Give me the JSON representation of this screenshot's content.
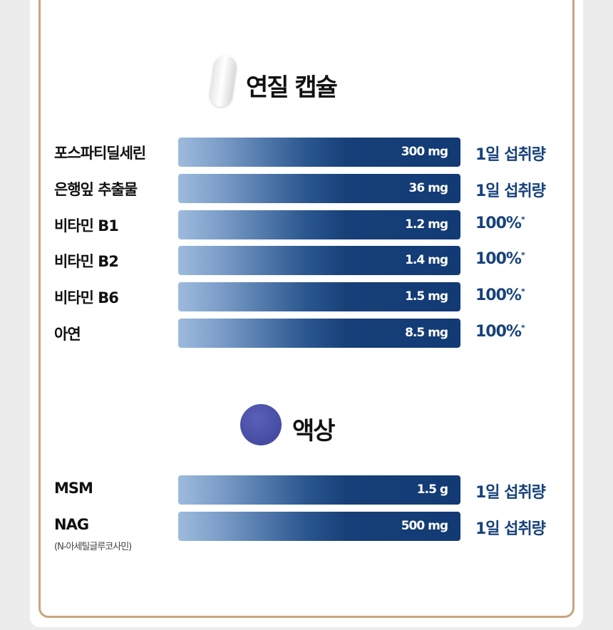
{
  "capsule_section": {
    "title": "연질 캡슐",
    "icon": "softgel-capsule-icon",
    "rows": [
      {
        "name": "포스파티딜세린",
        "amount": "300 mg",
        "right": "1일 섭취량",
        "star": ""
      },
      {
        "name": "은행잎 추출물",
        "amount": "36 mg",
        "right": "1일 섭취량",
        "star": ""
      },
      {
        "name": "비타민 B1",
        "amount": "1.2 mg",
        "right": "100%",
        "star": "*"
      },
      {
        "name": "비타민 B2",
        "amount": "1.4 mg",
        "right": "100%",
        "star": "*"
      },
      {
        "name": "비타민 B6",
        "amount": "1.5 mg",
        "right": "100%",
        "star": "*"
      },
      {
        "name": "아연",
        "amount": "8.5 mg",
        "right": "100%",
        "star": "*"
      }
    ]
  },
  "liquid_section": {
    "title": "액상",
    "icon": "liquid-drop-icon",
    "rows": [
      {
        "name": "MSM",
        "amount": "1.5 g",
        "right": "1일 섭취량"
      },
      {
        "name": "NAG",
        "sub": "(N-아세틸글루코사민)",
        "amount": "500 mg",
        "right": "1일 섭취량"
      }
    ]
  },
  "colors": {
    "bar_dark": "#123a74",
    "bar_light": "#9dbbdc",
    "accent_text": "#17427c",
    "border": "#c9a57e",
    "drop": "#4a4fa8"
  }
}
